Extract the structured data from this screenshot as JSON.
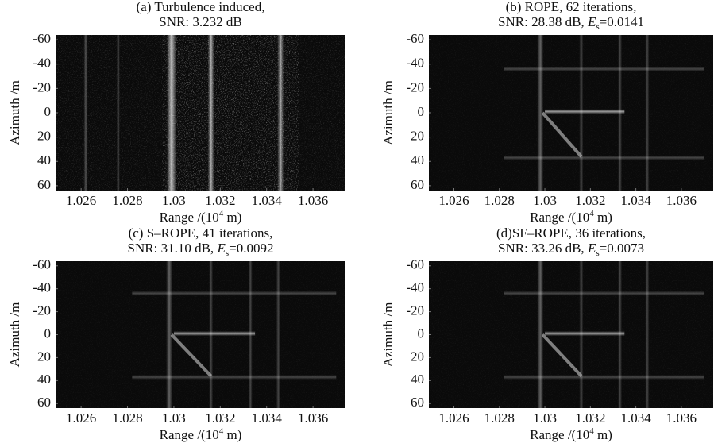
{
  "chart_data": [
    {
      "type": "image",
      "title": "(a) Turbulence induced,",
      "subtitle": [
        "SNR: 3.232 dB"
      ],
      "xlabel": [
        "Range /(10",
        "4",
        " m)"
      ],
      "ylabel": "Azimuth /m",
      "xlim": [
        1.0249,
        1.0374
      ],
      "xticks": [
        1.026,
        1.028,
        1.03,
        1.032,
        1.034,
        1.036
      ],
      "ylim": [
        -64,
        64
      ],
      "yticks": [
        -60,
        -40,
        -20,
        0,
        20,
        40,
        60
      ],
      "y_inverted": true
    },
    {
      "type": "image",
      "title": "(b) ROPE, 62 iterations,",
      "subtitle": [
        "SNR: 28.38 dB, ",
        "E",
        "s",
        "=0.0141"
      ],
      "xlabel": [
        "Range /(10",
        "4",
        " m)"
      ],
      "ylabel": "Azimuth /m",
      "xlim": [
        1.0249,
        1.0374
      ],
      "xticks": [
        1.026,
        1.028,
        1.03,
        1.032,
        1.034,
        1.036
      ],
      "ylim": [
        -64,
        64
      ],
      "yticks": [
        -60,
        -40,
        -20,
        0,
        20,
        40,
        60
      ],
      "y_inverted": true
    },
    {
      "type": "image",
      "title": "(c) S–ROPE, 41 iterations,",
      "subtitle": [
        "SNR: 31.10 dB, ",
        "E",
        "s",
        "=0.0092"
      ],
      "xlabel": [
        "Range /(10",
        "4",
        " m)"
      ],
      "ylabel": "Azimuth /m",
      "xlim": [
        1.0249,
        1.0374
      ],
      "xticks": [
        1.026,
        1.028,
        1.03,
        1.032,
        1.034,
        1.036
      ],
      "ylim": [
        -64,
        64
      ],
      "yticks": [
        -60,
        -40,
        -20,
        0,
        20,
        40,
        60
      ],
      "y_inverted": true
    },
    {
      "type": "image",
      "title": "(d)SF–ROPE, 36 iterations,",
      "subtitle": [
        "SNR: 33.26 dB, ",
        "E",
        "s",
        "=0.0073"
      ],
      "xlabel": [
        "Range /(10",
        "4",
        " m)"
      ],
      "ylabel": "Azimuth /m",
      "xlim": [
        1.0249,
        1.0374
      ],
      "xticks": [
        1.026,
        1.028,
        1.03,
        1.032,
        1.034,
        1.036
      ],
      "ylim": [
        -64,
        64
      ],
      "yticks": [
        -60,
        -40,
        -20,
        0,
        20,
        40,
        60
      ],
      "y_inverted": true
    }
  ]
}
